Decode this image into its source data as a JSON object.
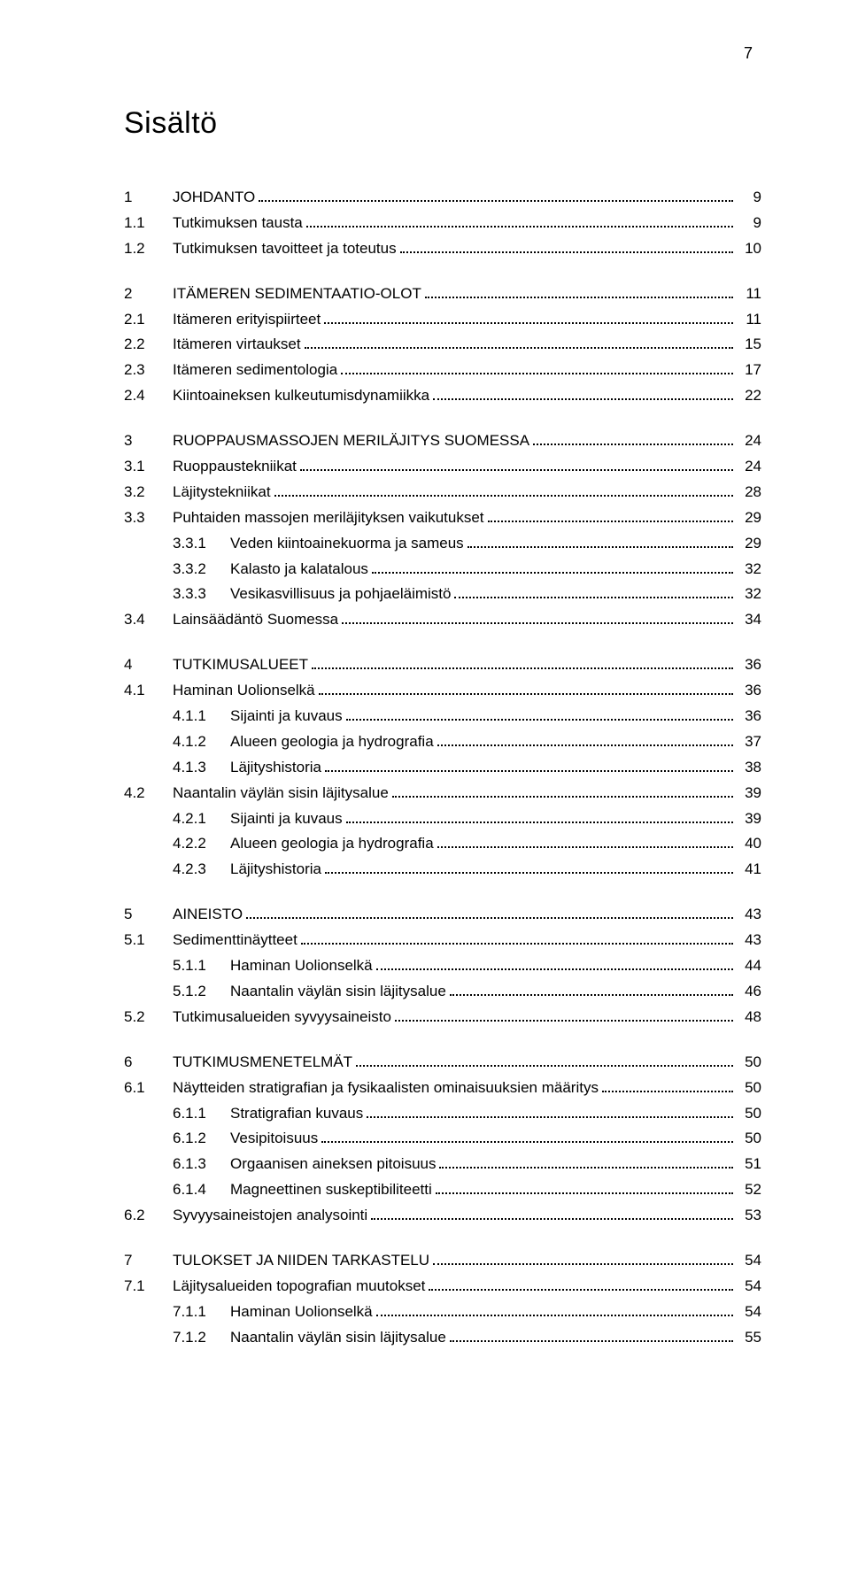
{
  "page_number": "7",
  "title": "Sisältö",
  "typography": {
    "title_fontsize": 34,
    "body_fontsize": 17,
    "line_height": 1.7,
    "font_family": "Arial",
    "text_color": "#000000",
    "background_color": "#ffffff"
  },
  "toc": [
    {
      "block": [
        {
          "num": "1",
          "label": "JOHDANTO",
          "page": "9",
          "level": 1
        },
        {
          "num": "1.1",
          "label": "Tutkimuksen tausta",
          "page": "9",
          "level": 2
        },
        {
          "num": "1.2",
          "label": "Tutkimuksen tavoitteet ja toteutus",
          "page": "10",
          "level": 2
        }
      ]
    },
    {
      "block": [
        {
          "num": "2",
          "label": "ITÄMEREN SEDIMENTAATIO-OLOT",
          "page": "11",
          "level": 1
        },
        {
          "num": "2.1",
          "label": "Itämeren erityispiirteet",
          "page": "11",
          "level": 2
        },
        {
          "num": "2.2",
          "label": "Itämeren virtaukset",
          "page": "15",
          "level": 2
        },
        {
          "num": "2.3",
          "label": "Itämeren sedimentologia",
          "page": "17",
          "level": 2
        },
        {
          "num": "2.4",
          "label": "Kiintoaineksen kulkeutumisdynamiikka",
          "page": "22",
          "level": 2
        }
      ]
    },
    {
      "block": [
        {
          "num": "3",
          "label": "RUOPPAUSMASSOJEN MERILÄJITYS SUOMESSA",
          "page": "24",
          "level": 1
        },
        {
          "num": "3.1",
          "label": "Ruoppaustekniikat",
          "page": "24",
          "level": 2
        },
        {
          "num": "3.2",
          "label": "Läjitystekniikat",
          "page": "28",
          "level": 2
        },
        {
          "num": "3.3",
          "label": "Puhtaiden massojen meriläjityksen vaikutukset",
          "page": "29",
          "level": 2
        },
        {
          "num": "3.3.1",
          "label": "Veden kiintoainekuorma ja sameus",
          "page": "29",
          "level": 3
        },
        {
          "num": "3.3.2",
          "label": "Kalasto ja kalatalous",
          "page": "32",
          "level": 3
        },
        {
          "num": "3.3.3",
          "label": "Vesikasvillisuus ja pohjaeläimistö",
          "page": "32",
          "level": 3
        },
        {
          "num": "3.4",
          "label": "Lainsäädäntö Suomessa",
          "page": "34",
          "level": 2
        }
      ]
    },
    {
      "block": [
        {
          "num": "4",
          "label": "TUTKIMUSALUEET",
          "page": "36",
          "level": 1
        },
        {
          "num": "4.1",
          "label": "Haminan Uolionselkä",
          "page": "36",
          "level": 2
        },
        {
          "num": "4.1.1",
          "label": "Sijainti ja kuvaus",
          "page": "36",
          "level": 3
        },
        {
          "num": "4.1.2",
          "label": "Alueen geologia ja hydrografia",
          "page": "37",
          "level": 3
        },
        {
          "num": "4.1.3",
          "label": "Läjityshistoria",
          "page": "38",
          "level": 3
        },
        {
          "num": "4.2",
          "label": "Naantalin väylän sisin läjitysalue",
          "page": "39",
          "level": 2
        },
        {
          "num": "4.2.1",
          "label": "Sijainti ja kuvaus",
          "page": "39",
          "level": 3
        },
        {
          "num": "4.2.2",
          "label": "Alueen geologia ja hydrografia",
          "page": "40",
          "level": 3
        },
        {
          "num": "4.2.3",
          "label": "Läjityshistoria",
          "page": "41",
          "level": 3
        }
      ]
    },
    {
      "block": [
        {
          "num": "5",
          "label": "AINEISTO",
          "page": "43",
          "level": 1
        },
        {
          "num": "5.1",
          "label": "Sedimenttinäytteet",
          "page": "43",
          "level": 2
        },
        {
          "num": "5.1.1",
          "label": "Haminan Uolionselkä",
          "page": "44",
          "level": 3
        },
        {
          "num": "5.1.2",
          "label": "Naantalin väylän sisin läjitysalue",
          "page": "46",
          "level": 3
        },
        {
          "num": "5.2",
          "label": "Tutkimusalueiden syvyysaineisto",
          "page": "48",
          "level": 2
        }
      ]
    },
    {
      "block": [
        {
          "num": "6",
          "label": "TUTKIMUSMENETELMÄT",
          "page": "50",
          "level": 1
        },
        {
          "num": "6.1",
          "label": "Näytteiden stratigrafian ja fysikaalisten ominaisuuksien määritys",
          "page": "50",
          "level": 2
        },
        {
          "num": "6.1.1",
          "label": "Stratigrafian kuvaus",
          "page": "50",
          "level": 3
        },
        {
          "num": "6.1.2",
          "label": "Vesipitoisuus",
          "page": "50",
          "level": 3
        },
        {
          "num": "6.1.3",
          "label": "Orgaanisen aineksen pitoisuus",
          "page": "51",
          "level": 3
        },
        {
          "num": "6.1.4",
          "label": "Magneettinen suskeptibiliteetti",
          "page": "52",
          "level": 3
        },
        {
          "num": "6.2",
          "label": "Syvyysaineistojen analysointi",
          "page": "53",
          "level": 2
        }
      ]
    },
    {
      "block": [
        {
          "num": "7",
          "label": "TULOKSET JA NIIDEN TARKASTELU",
          "page": "54",
          "level": 1
        },
        {
          "num": "7.1",
          "label": "Läjitysalueiden topografian muutokset",
          "page": "54",
          "level": 2
        },
        {
          "num": "7.1.1",
          "label": "Haminan Uolionselkä",
          "page": "54",
          "level": 3
        },
        {
          "num": "7.1.2",
          "label": "Naantalin väylän sisin läjitysalue",
          "page": "55",
          "level": 3
        }
      ]
    }
  ]
}
